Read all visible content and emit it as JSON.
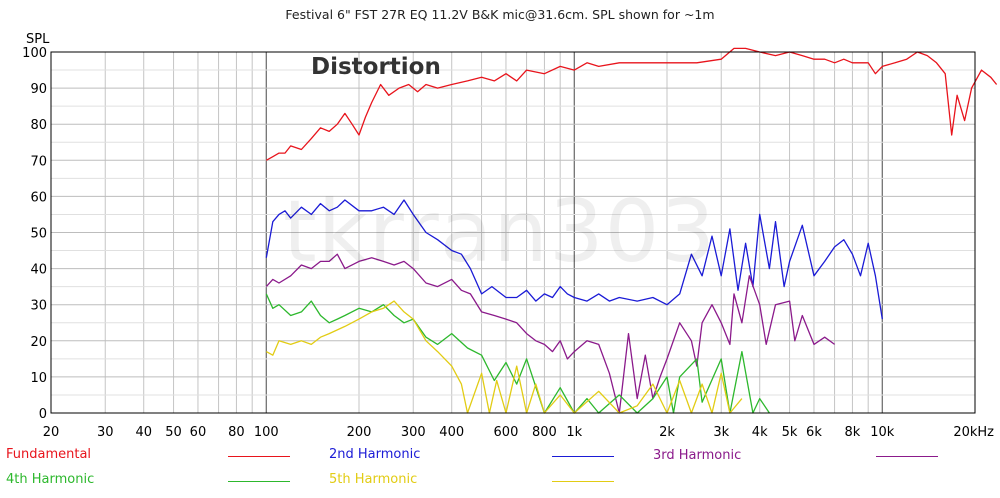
{
  "chart_data": {
    "type": "line",
    "title": "Festival 6\" FST 27R EQ 11.2V B&K mic@31.6cm. SPL shown for ~1m",
    "ylabel": "SPL",
    "xlabel": "",
    "xscale": "log",
    "xlim": [
      20,
      20000
    ],
    "ylim": [
      0,
      100
    ],
    "annotation": "Distortion",
    "watermark": "tkrran303",
    "x_ticks": [
      {
        "v": 20,
        "label": "20"
      },
      {
        "v": 30,
        "label": "30"
      },
      {
        "v": 40,
        "label": "40"
      },
      {
        "v": 50,
        "label": "50"
      },
      {
        "v": 60,
        "label": "60"
      },
      {
        "v": 80,
        "label": "80"
      },
      {
        "v": 100,
        "label": "100"
      },
      {
        "v": 200,
        "label": "200"
      },
      {
        "v": 300,
        "label": "300"
      },
      {
        "v": 400,
        "label": "400"
      },
      {
        "v": 600,
        "label": "600"
      },
      {
        "v": 800,
        "label": "800"
      },
      {
        "v": 1000,
        "label": "1k"
      },
      {
        "v": 2000,
        "label": "2k"
      },
      {
        "v": 3000,
        "label": "3k"
      },
      {
        "v": 4000,
        "label": "4k"
      },
      {
        "v": 5000,
        "label": "5k"
      },
      {
        "v": 6000,
        "label": "6k"
      },
      {
        "v": 8000,
        "label": "8k"
      },
      {
        "v": 10000,
        "label": "10k"
      },
      {
        "v": 20000,
        "label": "20kHz"
      }
    ],
    "y_ticks": [
      0,
      10,
      20,
      30,
      40,
      50,
      60,
      70,
      80,
      90,
      100
    ],
    "legend_position": "bottom",
    "series": [
      {
        "name": "Fundamental",
        "color": "#e8141c",
        "points": [
          [
            100,
            70
          ],
          [
            105,
            71
          ],
          [
            110,
            72
          ],
          [
            115,
            72
          ],
          [
            120,
            74
          ],
          [
            130,
            73
          ],
          [
            140,
            76
          ],
          [
            150,
            79
          ],
          [
            160,
            78
          ],
          [
            170,
            80
          ],
          [
            180,
            83
          ],
          [
            190,
            80
          ],
          [
            200,
            77
          ],
          [
            210,
            82
          ],
          [
            220,
            86
          ],
          [
            235,
            91
          ],
          [
            250,
            88
          ],
          [
            270,
            90
          ],
          [
            290,
            91
          ],
          [
            310,
            89
          ],
          [
            330,
            91
          ],
          [
            360,
            90
          ],
          [
            400,
            91
          ],
          [
            450,
            92
          ],
          [
            500,
            93
          ],
          [
            550,
            92
          ],
          [
            600,
            94
          ],
          [
            650,
            92
          ],
          [
            700,
            95
          ],
          [
            800,
            94
          ],
          [
            900,
            96
          ],
          [
            1000,
            95
          ],
          [
            1100,
            97
          ],
          [
            1200,
            96
          ],
          [
            1400,
            97
          ],
          [
            1600,
            97
          ],
          [
            2000,
            97
          ],
          [
            2500,
            97
          ],
          [
            3000,
            98
          ],
          [
            3300,
            101
          ],
          [
            3600,
            101
          ],
          [
            4000,
            100
          ],
          [
            4500,
            99
          ],
          [
            5000,
            100
          ],
          [
            5500,
            99
          ],
          [
            6000,
            98
          ],
          [
            6500,
            98
          ],
          [
            7000,
            97
          ],
          [
            7500,
            98
          ],
          [
            8000,
            97
          ],
          [
            9000,
            97
          ],
          [
            9500,
            94
          ],
          [
            10000,
            96
          ],
          [
            11000,
            97
          ],
          [
            12000,
            98
          ],
          [
            13000,
            100
          ],
          [
            14000,
            99
          ],
          [
            15000,
            97
          ],
          [
            16000,
            94
          ],
          [
            16800,
            77
          ],
          [
            17500,
            88
          ],
          [
            18500,
            81
          ],
          [
            19500,
            90
          ],
          [
            21000,
            95
          ],
          [
            22500,
            93
          ],
          [
            23500,
            91
          ]
        ]
      },
      {
        "name": "2nd Harmonic",
        "color": "#1b1bd6",
        "points": [
          [
            100,
            43
          ],
          [
            105,
            53
          ],
          [
            110,
            55
          ],
          [
            115,
            56
          ],
          [
            120,
            54
          ],
          [
            130,
            57
          ],
          [
            140,
            55
          ],
          [
            150,
            58
          ],
          [
            160,
            56
          ],
          [
            170,
            57
          ],
          [
            180,
            59
          ],
          [
            200,
            56
          ],
          [
            220,
            56
          ],
          [
            240,
            57
          ],
          [
            260,
            55
          ],
          [
            280,
            59
          ],
          [
            300,
            55
          ],
          [
            330,
            50
          ],
          [
            360,
            48
          ],
          [
            400,
            45
          ],
          [
            430,
            44
          ],
          [
            460,
            40
          ],
          [
            500,
            33
          ],
          [
            540,
            35
          ],
          [
            600,
            32
          ],
          [
            650,
            32
          ],
          [
            700,
            34
          ],
          [
            750,
            31
          ],
          [
            800,
            33
          ],
          [
            850,
            32
          ],
          [
            900,
            35
          ],
          [
            950,
            33
          ],
          [
            1000,
            32
          ],
          [
            1100,
            31
          ],
          [
            1200,
            33
          ],
          [
            1300,
            31
          ],
          [
            1400,
            32
          ],
          [
            1600,
            31
          ],
          [
            1800,
            32
          ],
          [
            2000,
            30
          ],
          [
            2200,
            33
          ],
          [
            2400,
            44
          ],
          [
            2600,
            38
          ],
          [
            2800,
            49
          ],
          [
            3000,
            38
          ],
          [
            3200,
            51
          ],
          [
            3400,
            34
          ],
          [
            3600,
            47
          ],
          [
            3800,
            35
          ],
          [
            4000,
            55
          ],
          [
            4300,
            40
          ],
          [
            4500,
            53
          ],
          [
            4800,
            35
          ],
          [
            5000,
            42
          ],
          [
            5500,
            52
          ],
          [
            6000,
            38
          ],
          [
            6500,
            42
          ],
          [
            7000,
            46
          ],
          [
            7500,
            48
          ],
          [
            8000,
            44
          ],
          [
            8500,
            38
          ],
          [
            9000,
            47
          ],
          [
            9500,
            38
          ],
          [
            10000,
            26
          ]
        ]
      },
      {
        "name": "3rd Harmonic",
        "color": "#8b1a8b",
        "points": [
          [
            100,
            35
          ],
          [
            105,
            37
          ],
          [
            110,
            36
          ],
          [
            120,
            38
          ],
          [
            130,
            41
          ],
          [
            140,
            40
          ],
          [
            150,
            42
          ],
          [
            160,
            42
          ],
          [
            170,
            44
          ],
          [
            180,
            40
          ],
          [
            200,
            42
          ],
          [
            220,
            43
          ],
          [
            240,
            42
          ],
          [
            260,
            41
          ],
          [
            280,
            42
          ],
          [
            300,
            40
          ],
          [
            330,
            36
          ],
          [
            360,
            35
          ],
          [
            400,
            37
          ],
          [
            430,
            34
          ],
          [
            460,
            33
          ],
          [
            500,
            28
          ],
          [
            550,
            27
          ],
          [
            600,
            26
          ],
          [
            650,
            25
          ],
          [
            700,
            22
          ],
          [
            750,
            20
          ],
          [
            800,
            19
          ],
          [
            850,
            17
          ],
          [
            900,
            20
          ],
          [
            950,
            15
          ],
          [
            1000,
            17
          ],
          [
            1100,
            20
          ],
          [
            1200,
            19
          ],
          [
            1300,
            11
          ],
          [
            1400,
            0
          ],
          [
            1500,
            22
          ],
          [
            1600,
            4
          ],
          [
            1700,
            16
          ],
          [
            1800,
            4
          ],
          [
            1900,
            10
          ],
          [
            2000,
            15
          ],
          [
            2200,
            25
          ],
          [
            2400,
            20
          ],
          [
            2500,
            13
          ],
          [
            2600,
            25
          ],
          [
            2800,
            30
          ],
          [
            3000,
            25
          ],
          [
            3200,
            19
          ],
          [
            3300,
            33
          ],
          [
            3500,
            25
          ],
          [
            3700,
            38
          ],
          [
            4000,
            30
          ],
          [
            4200,
            19
          ],
          [
            4500,
            30
          ],
          [
            5000,
            31
          ],
          [
            5200,
            20
          ],
          [
            5500,
            27
          ],
          [
            6000,
            19
          ],
          [
            6500,
            21
          ],
          [
            7000,
            19
          ]
        ]
      },
      {
        "name": "4th Harmonic",
        "color": "#2db82d",
        "points": [
          [
            100,
            33
          ],
          [
            105,
            29
          ],
          [
            110,
            30
          ],
          [
            120,
            27
          ],
          [
            130,
            28
          ],
          [
            140,
            31
          ],
          [
            150,
            27
          ],
          [
            160,
            25
          ],
          [
            170,
            26
          ],
          [
            180,
            27
          ],
          [
            200,
            29
          ],
          [
            220,
            28
          ],
          [
            240,
            30
          ],
          [
            260,
            27
          ],
          [
            280,
            25
          ],
          [
            300,
            26
          ],
          [
            330,
            21
          ],
          [
            360,
            19
          ],
          [
            400,
            22
          ],
          [
            450,
            18
          ],
          [
            500,
            16
          ],
          [
            550,
            9
          ],
          [
            600,
            14
          ],
          [
            650,
            8
          ],
          [
            700,
            15
          ],
          [
            800,
            0
          ],
          [
            900,
            7
          ],
          [
            1000,
            0
          ],
          [
            1100,
            4
          ],
          [
            1200,
            0
          ],
          [
            1400,
            5
          ],
          [
            1600,
            0
          ],
          [
            1800,
            4
          ],
          [
            2000,
            10
          ],
          [
            2100,
            0
          ],
          [
            2200,
            10
          ],
          [
            2500,
            15
          ],
          [
            2600,
            3
          ],
          [
            3000,
            15
          ],
          [
            3200,
            0
          ],
          [
            3500,
            17
          ],
          [
            3800,
            0
          ],
          [
            4000,
            4
          ],
          [
            4300,
            0
          ]
        ]
      },
      {
        "name": "5th Harmonic",
        "color": "#e2cc14",
        "points": [
          [
            100,
            17
          ],
          [
            105,
            16
          ],
          [
            110,
            20
          ],
          [
            120,
            19
          ],
          [
            130,
            20
          ],
          [
            140,
            19
          ],
          [
            150,
            21
          ],
          [
            160,
            22
          ],
          [
            180,
            24
          ],
          [
            200,
            26
          ],
          [
            220,
            28
          ],
          [
            240,
            29
          ],
          [
            260,
            31
          ],
          [
            280,
            28
          ],
          [
            300,
            26
          ],
          [
            330,
            20
          ],
          [
            360,
            17
          ],
          [
            400,
            13
          ],
          [
            430,
            8
          ],
          [
            450,
            0
          ],
          [
            500,
            11
          ],
          [
            530,
            0
          ],
          [
            560,
            9
          ],
          [
            600,
            0
          ],
          [
            650,
            13
          ],
          [
            700,
            0
          ],
          [
            750,
            8
          ],
          [
            800,
            0
          ],
          [
            900,
            5
          ],
          [
            1000,
            0
          ],
          [
            1200,
            6
          ],
          [
            1400,
            0
          ],
          [
            1600,
            2
          ],
          [
            1800,
            8
          ],
          [
            2000,
            0
          ],
          [
            2200,
            9
          ],
          [
            2400,
            0
          ],
          [
            2600,
            8
          ],
          [
            2800,
            0
          ],
          [
            3000,
            11
          ],
          [
            3200,
            0
          ],
          [
            3500,
            4
          ]
        ]
      }
    ]
  }
}
